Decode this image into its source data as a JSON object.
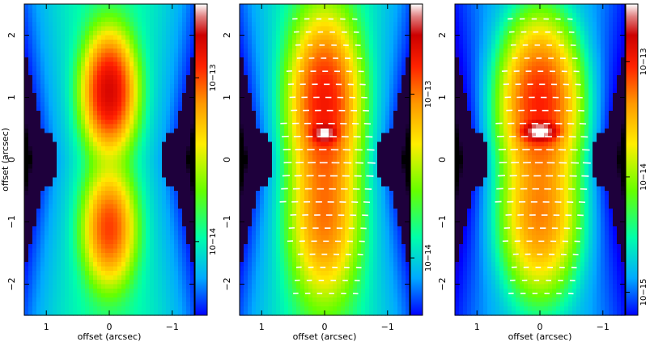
{
  "figure": {
    "description_panels": 3
  },
  "chart_data": [
    {
      "type": "heatmap",
      "panel": "left",
      "xlabel": "offset (arcsec)",
      "ylabel": "offset (arcsec)",
      "xlim": [
        1.35,
        -1.35
      ],
      "ylim": [
        -2.5,
        2.5
      ],
      "xticks": [
        1,
        0,
        -1
      ],
      "yticks": [
        -2,
        -1,
        0,
        1,
        2
      ],
      "xtick_labels": [
        "1",
        "0",
        "−1"
      ],
      "ytick_labels": [
        "−2",
        "−1",
        "0",
        "1",
        "2"
      ],
      "colorbar": {
        "scale": "log",
        "labels": [
          "10−13",
          "10−14"
        ],
        "label_values": [
          -13,
          -14
        ],
        "range": [
          -14.45,
          -12.55
        ]
      },
      "vectors": false,
      "lobes": [
        {
          "x": 0,
          "y": 1.1,
          "peak": -12.82,
          "sx": 0.22,
          "sy": 0.5
        },
        {
          "x": 0,
          "y": -1.1,
          "peak": -13.05,
          "sx": 0.22,
          "sy": 0.5
        }
      ]
    },
    {
      "type": "heatmap",
      "panel": "middle",
      "xlabel": "offset (arcsec)",
      "ylabel": "",
      "xlim": [
        1.35,
        -1.35
      ],
      "ylim": [
        -2.5,
        2.5
      ],
      "xticks": [
        1,
        0,
        -1
      ],
      "yticks": [
        -2,
        -1,
        0,
        1,
        2
      ],
      "xtick_labels": [
        "1",
        "0",
        "−1"
      ],
      "ytick_labels": [
        "−2",
        "−1",
        "0",
        "1",
        "2"
      ],
      "colorbar": {
        "scale": "log",
        "labels": [
          "10−13",
          "10−14"
        ],
        "label_values": [
          -13,
          -14
        ],
        "range": [
          -14.35,
          -12.45
        ]
      },
      "vectors": true,
      "lobes": [
        {
          "x": 0,
          "y": 0.95,
          "peak": -12.85,
          "sx": 0.3,
          "sy": 0.75
        },
        {
          "x": 0,
          "y": -0.95,
          "peak": -13.1,
          "sx": 0.3,
          "sy": 0.75
        },
        {
          "x": 0,
          "y": 0.42,
          "peak": -12.6,
          "sx": 0.1,
          "sy": 0.08
        }
      ]
    },
    {
      "type": "heatmap",
      "panel": "right",
      "xlabel": "offset (arcsec)",
      "ylabel": "",
      "xlim": [
        1.35,
        -1.35
      ],
      "ylim": [
        -2.5,
        2.5
      ],
      "xticks": [
        1,
        0,
        -1
      ],
      "yticks": [
        -2,
        -1,
        0,
        1,
        2
      ],
      "xtick_labels": [
        "1",
        "0",
        "−1"
      ],
      "ytick_labels": [
        "−2",
        "−1",
        "0",
        "1",
        "2"
      ],
      "colorbar": {
        "scale": "log",
        "labels": [
          "10−13",
          "10−14",
          "10−15"
        ],
        "label_values": [
          -13,
          -14,
          -15
        ],
        "range": [
          -15.2,
          -12.5
        ]
      },
      "vectors": true,
      "lobes": [
        {
          "x": 0,
          "y": 0.9,
          "peak": -13.05,
          "sx": 0.3,
          "sy": 0.65
        },
        {
          "x": 0,
          "y": -0.9,
          "peak": -13.35,
          "sx": 0.3,
          "sy": 0.65
        },
        {
          "x": 0,
          "y": 0.45,
          "peak": -12.5,
          "sx": 0.14,
          "sy": 0.08
        }
      ]
    }
  ]
}
